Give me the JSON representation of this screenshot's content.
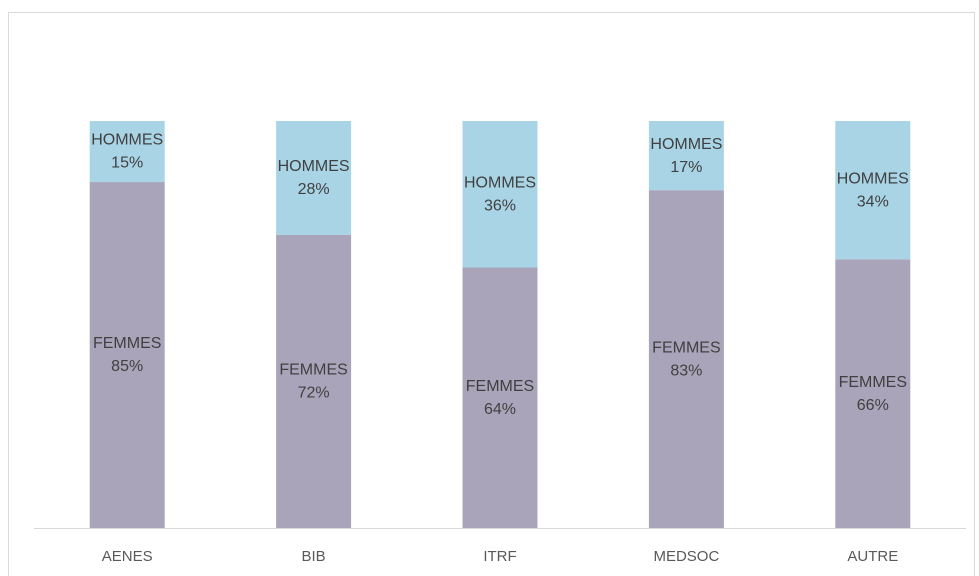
{
  "chart_data": {
    "type": "stacked_bar",
    "categories": [
      "AENES",
      "BIB",
      "ITRF",
      "MEDSOC",
      "AUTRE"
    ],
    "series": [
      {
        "name": "FEMMES",
        "color": "#a9a4b9",
        "values": [
          85,
          72,
          64,
          83,
          66
        ],
        "value_labels": [
          "85%",
          "72%",
          "64%",
          "83%",
          "66%"
        ]
      },
      {
        "name": "HOMMES",
        "color": "#a9d4e6",
        "values": [
          15,
          28,
          36,
          17,
          34
        ],
        "value_labels": [
          "15%",
          "28%",
          "36%",
          "17%",
          "34%"
        ]
      }
    ]
  }
}
